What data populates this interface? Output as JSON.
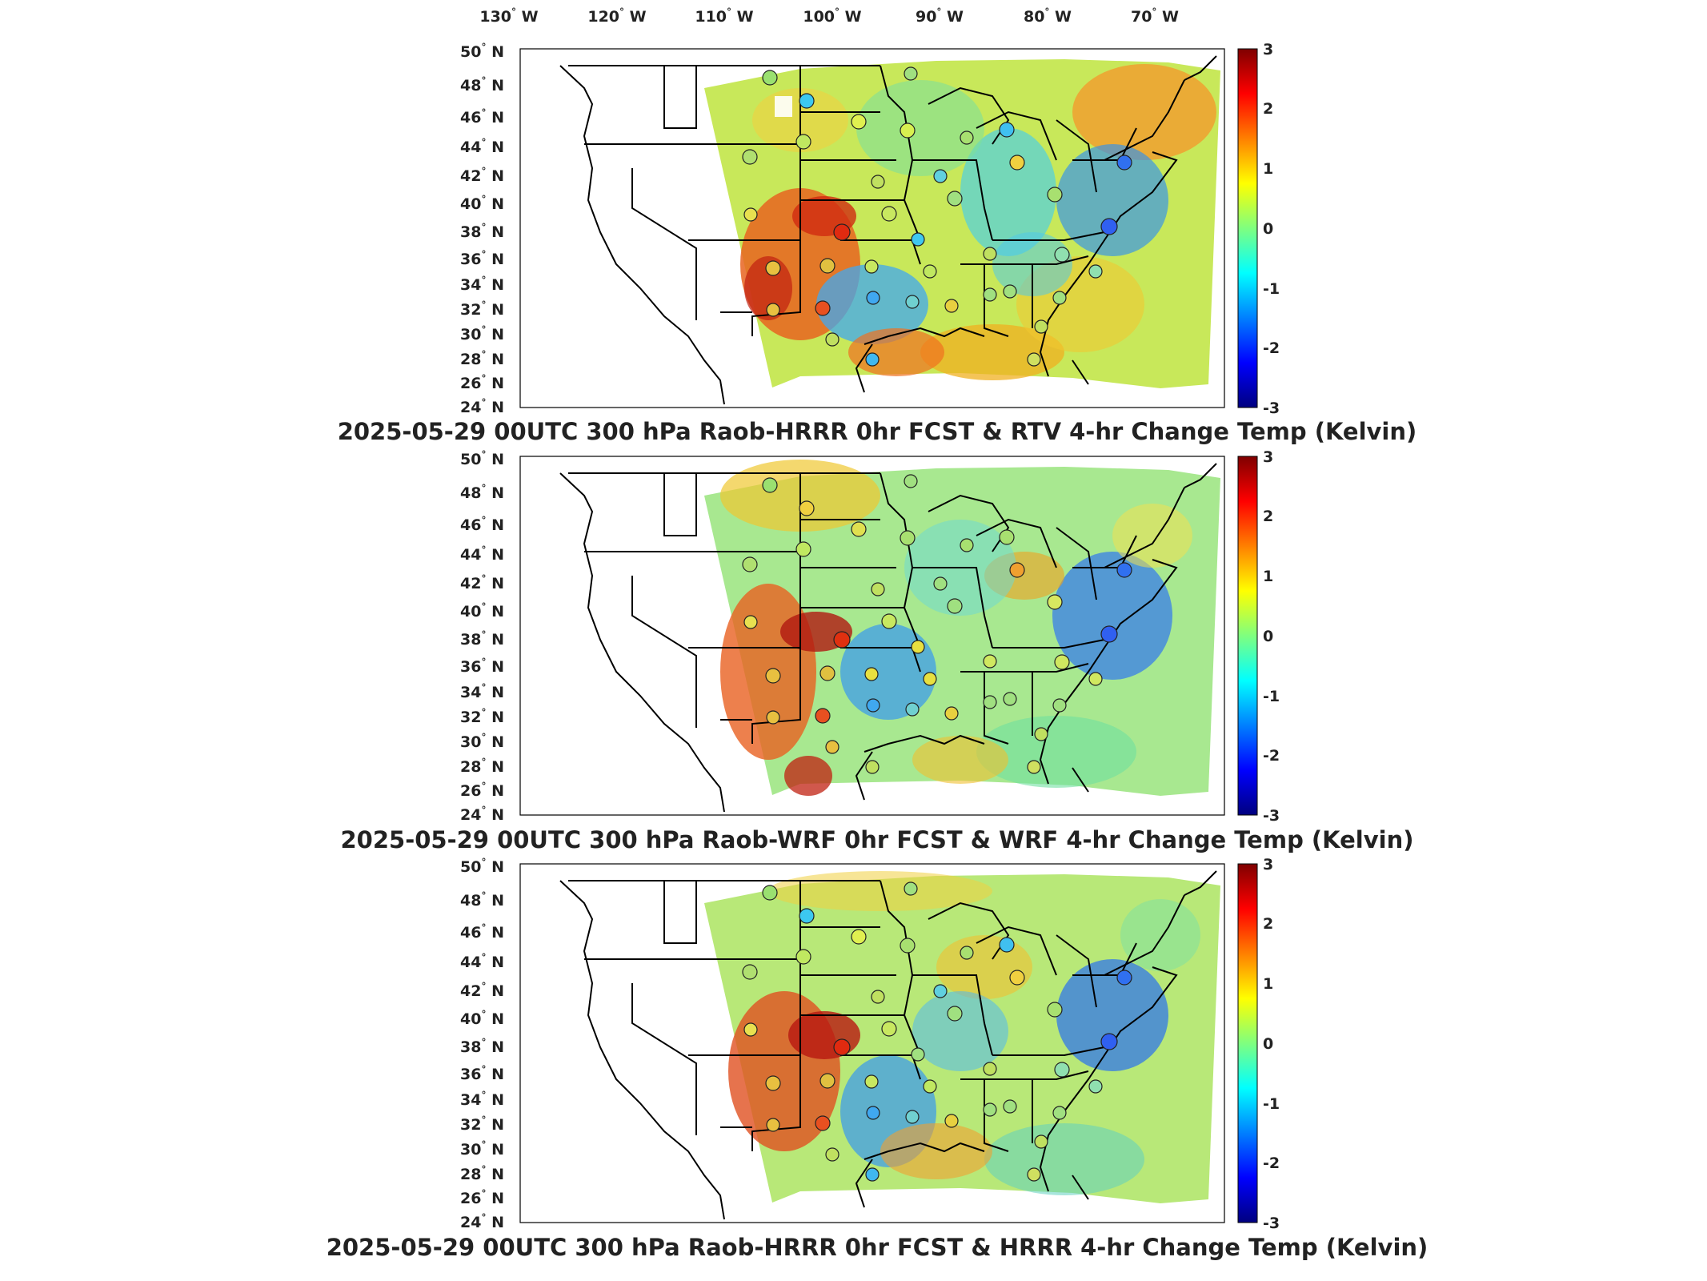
{
  "figure": {
    "top_lon_labels": [
      "130",
      "120",
      "110",
      "100",
      "90",
      "80",
      "70"
    ],
    "lon_suffix": "W",
    "lat_labels": [
      "50",
      "48",
      "46",
      "44",
      "42",
      "40",
      "38",
      "36",
      "34",
      "32",
      "30",
      "28",
      "26",
      "24"
    ],
    "lat_suffix": "N",
    "colorbar_ticks": [
      "3",
      "2",
      "1",
      "0",
      "-1",
      "-2",
      "-3"
    ],
    "colorbar_range": [
      -3,
      3
    ],
    "colormap": "jet",
    "colors": {
      "outline": "#000000",
      "frame": "#000000",
      "title": "#222222"
    }
  },
  "panels": [
    {
      "title": "2025-05-29 00UTC 300 hPa Raob-HRRR 0hr FCST & RTV 4-hr Change Temp (Kelvin)"
    },
    {
      "title": "2025-05-29 00UTC 300 hPa Raob-WRF 0hr FCST & WRF 4-hr Change Temp (Kelvin)"
    },
    {
      "title": "2025-05-29 00UTC 300 hPa Raob-HRRR 0hr FCST & HRRR 4-hr Change Temp (Kelvin)"
    }
  ]
}
